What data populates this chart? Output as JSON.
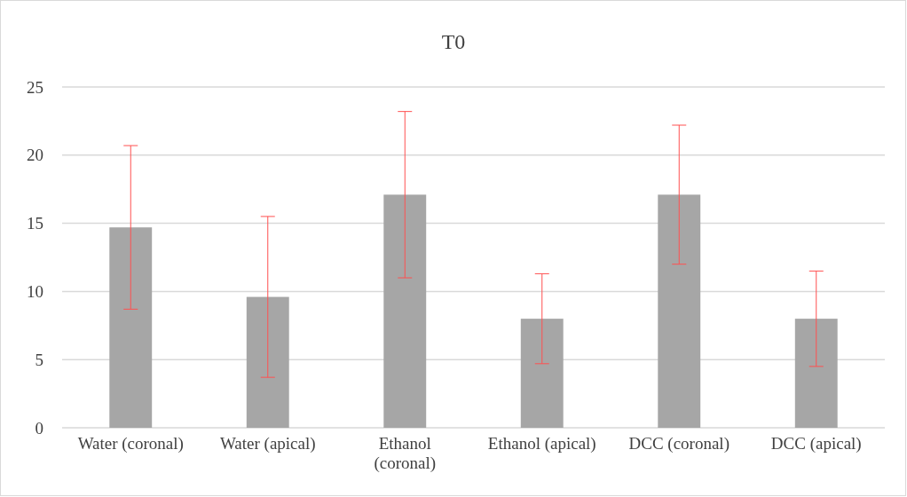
{
  "chart_data": {
    "type": "bar",
    "title": "T0",
    "categories": [
      "Water (coronal)",
      "Water (apical)",
      "Ethanol (coronal)",
      "Ethanol (apical)",
      "DCC (coronal)",
      "DCC (apical)"
    ],
    "values": [
      14.7,
      9.6,
      17.1,
      8.0,
      17.1,
      8.0
    ],
    "errors": [
      6.0,
      5.9,
      6.1,
      3.3,
      5.1,
      3.5
    ],
    "color": "#a6a6a6",
    "ylim": [
      0,
      25
    ],
    "yticks": [
      0,
      5,
      10,
      15,
      20,
      25
    ],
    "grid": "y"
  }
}
